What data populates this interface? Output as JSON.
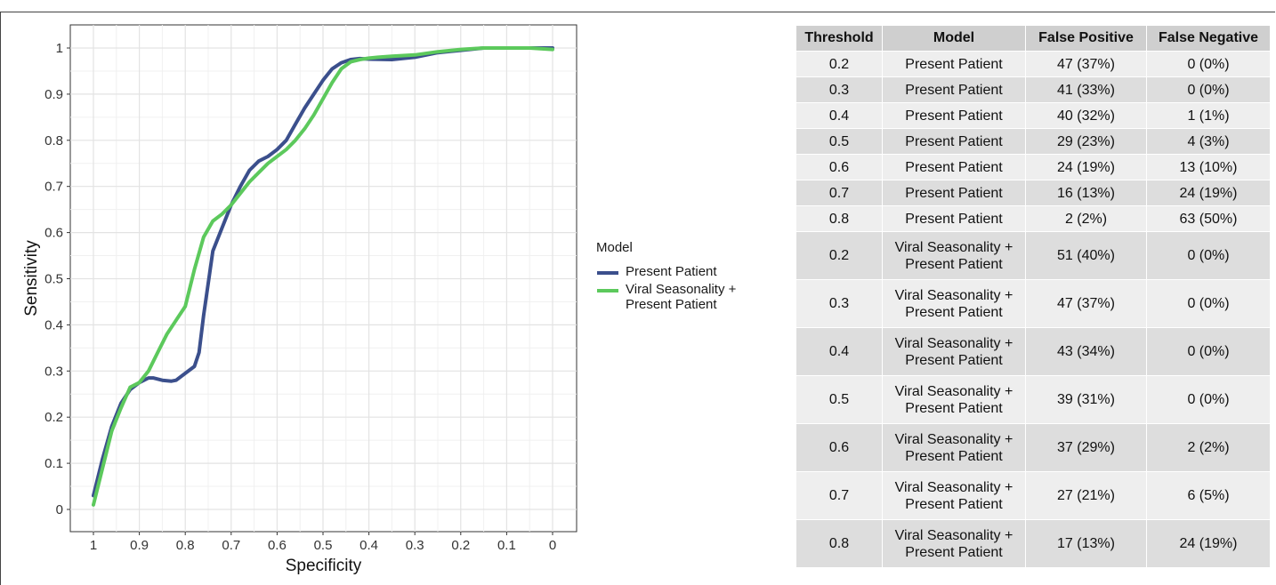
{
  "chart_data": [
    {
      "type": "line",
      "title": "",
      "xlabel": "Specificity",
      "ylabel": "Sensitivity",
      "x_reversed": true,
      "xlim": [
        1,
        0
      ],
      "ylim": [
        0,
        1
      ],
      "x_ticks": [
        "1",
        "0.9",
        "0.8",
        "0.7",
        "0.6",
        "0.5",
        "0.4",
        "0.3",
        "0.2",
        "0.1",
        "0"
      ],
      "y_ticks": [
        "0",
        "0.1",
        "0.2",
        "0.3",
        "0.4",
        "0.5",
        "0.6",
        "0.7",
        "0.8",
        "0.9",
        "1"
      ],
      "grid": true,
      "legend": {
        "title": "Model",
        "position": "right",
        "entries": [
          {
            "lines": [
              "Present Patient"
            ],
            "color": "#3b4f8c"
          },
          {
            "lines": [
              "Viral Seasonality +",
              "Present Patient"
            ],
            "color": "#5cc95c"
          }
        ]
      },
      "series": [
        {
          "name": "Present Patient",
          "color": "#3b4f8c",
          "x": [
            1,
            0.98,
            0.96,
            0.94,
            0.92,
            0.9,
            0.88,
            0.87,
            0.85,
            0.83,
            0.82,
            0.8,
            0.78,
            0.77,
            0.76,
            0.74,
            0.72,
            0.7,
            0.68,
            0.66,
            0.64,
            0.62,
            0.6,
            0.58,
            0.56,
            0.54,
            0.52,
            0.5,
            0.48,
            0.46,
            0.44,
            0.42,
            0.4,
            0.35,
            0.3,
            0.25,
            0.2,
            0.15,
            0.1,
            0.05,
            0.0
          ],
          "y": [
            0.03,
            0.11,
            0.18,
            0.23,
            0.26,
            0.275,
            0.285,
            0.285,
            0.28,
            0.278,
            0.28,
            0.295,
            0.31,
            0.34,
            0.42,
            0.56,
            0.61,
            0.66,
            0.7,
            0.735,
            0.755,
            0.765,
            0.78,
            0.8,
            0.835,
            0.87,
            0.9,
            0.93,
            0.955,
            0.968,
            0.975,
            0.977,
            0.976,
            0.975,
            0.98,
            0.99,
            0.995,
            1.0,
            1.0,
            1.0,
            1.0
          ]
        },
        {
          "name": "Viral Seasonality + Present Patient",
          "color": "#5cc95c",
          "x": [
            1,
            0.98,
            0.96,
            0.94,
            0.92,
            0.9,
            0.88,
            0.86,
            0.84,
            0.82,
            0.8,
            0.78,
            0.76,
            0.74,
            0.72,
            0.7,
            0.68,
            0.66,
            0.64,
            0.62,
            0.6,
            0.58,
            0.56,
            0.54,
            0.52,
            0.5,
            0.48,
            0.46,
            0.44,
            0.42,
            0.4,
            0.38,
            0.35,
            0.3,
            0.25,
            0.2,
            0.15,
            0.1,
            0.05,
            0.0
          ],
          "y": [
            0.01,
            0.09,
            0.17,
            0.22,
            0.265,
            0.275,
            0.3,
            0.34,
            0.38,
            0.41,
            0.44,
            0.52,
            0.59,
            0.625,
            0.64,
            0.66,
            0.685,
            0.71,
            0.73,
            0.75,
            0.765,
            0.78,
            0.8,
            0.825,
            0.855,
            0.89,
            0.925,
            0.955,
            0.97,
            0.975,
            0.978,
            0.98,
            0.982,
            0.985,
            0.992,
            0.997,
            1.0,
            1.0,
            1.0,
            0.997
          ]
        }
      ]
    },
    {
      "type": "table",
      "columns": [
        "Threshold",
        "Model",
        "False Positive",
        "False Negative"
      ],
      "rows": [
        {
          "threshold": "0.2",
          "model": [
            "Present Patient"
          ],
          "fp": "47 (37%)",
          "fn": "0 (0%)"
        },
        {
          "threshold": "0.3",
          "model": [
            "Present Patient"
          ],
          "fp": "41 (33%)",
          "fn": "0 (0%)"
        },
        {
          "threshold": "0.4",
          "model": [
            "Present Patient"
          ],
          "fp": "40 (32%)",
          "fn": "1 (1%)"
        },
        {
          "threshold": "0.5",
          "model": [
            "Present Patient"
          ],
          "fp": "29 (23%)",
          "fn": "4 (3%)"
        },
        {
          "threshold": "0.6",
          "model": [
            "Present Patient"
          ],
          "fp": "24 (19%)",
          "fn": "13 (10%)"
        },
        {
          "threshold": "0.7",
          "model": [
            "Present Patient"
          ],
          "fp": "16 (13%)",
          "fn": "24 (19%)"
        },
        {
          "threshold": "0.8",
          "model": [
            "Present Patient"
          ],
          "fp": "2 (2%)",
          "fn": "63 (50%)"
        },
        {
          "threshold": "0.2",
          "model": [
            "Viral Seasonality +",
            "Present Patient"
          ],
          "fp": "51 (40%)",
          "fn": "0 (0%)"
        },
        {
          "threshold": "0.3",
          "model": [
            "Viral Seasonality +",
            "Present Patient"
          ],
          "fp": "47 (37%)",
          "fn": "0 (0%)"
        },
        {
          "threshold": "0.4",
          "model": [
            "Viral Seasonality +",
            "Present Patient"
          ],
          "fp": "43 (34%)",
          "fn": "0 (0%)"
        },
        {
          "threshold": "0.5",
          "model": [
            "Viral Seasonality +",
            "Present Patient"
          ],
          "fp": "39 (31%)",
          "fn": "0 (0%)"
        },
        {
          "threshold": "0.6",
          "model": [
            "Viral Seasonality +",
            "Present Patient"
          ],
          "fp": "37 (29%)",
          "fn": "2 (2%)"
        },
        {
          "threshold": "0.7",
          "model": [
            "Viral Seasonality +",
            "Present Patient"
          ],
          "fp": "27 (21%)",
          "fn": "6 (5%)"
        },
        {
          "threshold": "0.8",
          "model": [
            "Viral Seasonality +",
            "Present Patient"
          ],
          "fp": "17 (13%)",
          "fn": "24 (19%)"
        }
      ]
    }
  ]
}
